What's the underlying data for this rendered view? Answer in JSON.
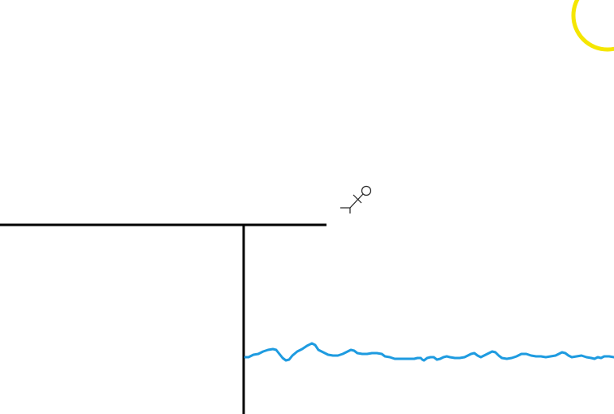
{
  "scene": {
    "background_color": "#ffffff",
    "sun": {
      "color": "#f5e600",
      "icon": "sun-icon"
    },
    "cliff": {
      "color": "#000000"
    },
    "water": {
      "color": "#1e9be0"
    },
    "stick_figure": {
      "color": "#222222",
      "icon": "stick-figure-icon",
      "state": "falling"
    }
  }
}
